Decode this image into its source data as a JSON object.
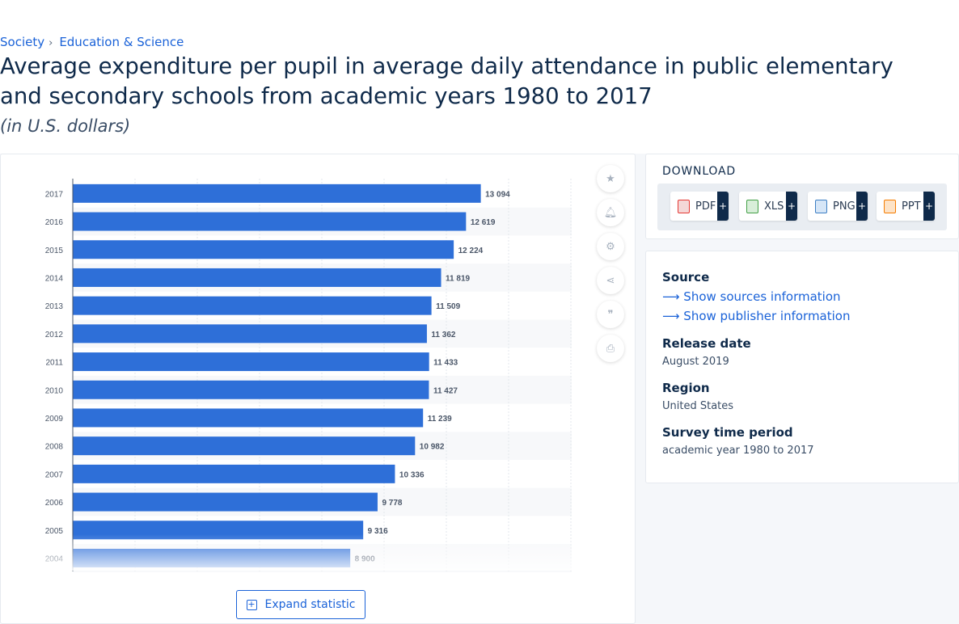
{
  "breadcrumb": {
    "items": [
      "Society",
      "Education & Science"
    ]
  },
  "title": "Average expenditure per pupil in average daily attendance in public elementary and secondary schools from academic years 1980 to 2017",
  "subtitle": "(in U.S. dollars)",
  "expand_label": "Expand statistic",
  "download": {
    "title": "DOWNLOAD",
    "buttons": [
      {
        "label": "PDF",
        "color": "#e53935"
      },
      {
        "label": "XLS",
        "color": "#43a047"
      },
      {
        "label": "PNG",
        "color": "#3d7fc4"
      },
      {
        "label": "PPT",
        "color": "#f57c00"
      }
    ],
    "plus": "+"
  },
  "info": {
    "source_label": "Source",
    "show_sources": "Show sources information",
    "show_publisher": "Show publisher information",
    "release_label": "Release date",
    "release_value": "August 2019",
    "region_label": "Region",
    "region_value": "United States",
    "survey_label": "Survey time period",
    "survey_value": "academic year 1980 to 2017"
  },
  "tools": [
    "star-icon",
    "bell-icon",
    "gear-icon",
    "share-icon",
    "quote-icon",
    "print-icon"
  ],
  "colors": {
    "bar": "#2e6fd8",
    "accent": "#1a62d8",
    "text": "#0f2a4a"
  },
  "chart_data": {
    "type": "bar",
    "orientation": "horizontal",
    "categories": [
      "2017",
      "2016",
      "2015",
      "2014",
      "2013",
      "2012",
      "2011",
      "2010",
      "2009",
      "2008",
      "2007",
      "2006",
      "2005",
      "2004"
    ],
    "values": [
      13094,
      12619,
      12224,
      11819,
      11509,
      11362,
      11433,
      11427,
      11239,
      10982,
      10336,
      9778,
      9316,
      8900
    ],
    "value_labels": [
      "13 094",
      "12 619",
      "12 224",
      "11 819",
      "11 509",
      "11 362",
      "11 433",
      "11 427",
      "11 239",
      "10 982",
      "10 336",
      "9 778",
      "9 316",
      "8 900"
    ],
    "xlim": [
      0,
      16000
    ],
    "grid": true
  }
}
